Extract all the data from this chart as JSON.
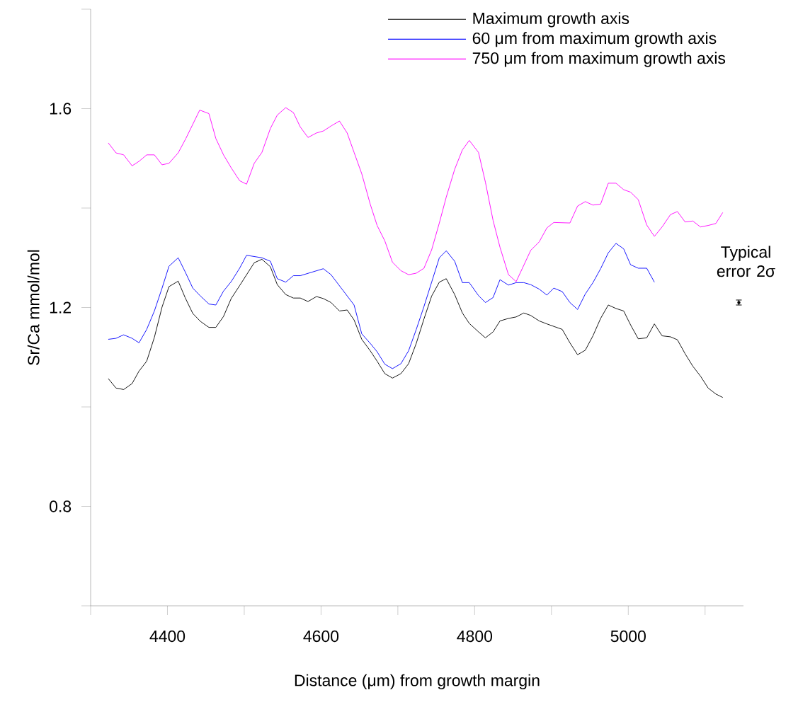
{
  "chart_data": {
    "type": "line",
    "xlabel": "Distance (μm) from growth margin",
    "ylabel": "Sr/Ca mmol/mol",
    "xlim": [
      4300,
      5150
    ],
    "ylim": [
      0.6,
      1.8
    ],
    "xticks": [
      {
        "value": 4300,
        "label": null
      },
      4400,
      {
        "value": 4500,
        "label": null
      },
      4600,
      {
        "value": 4700,
        "label": null
      },
      4800,
      {
        "value": 4900,
        "label": null
      },
      5000,
      {
        "value": 5100,
        "label": null
      }
    ],
    "yticks": [
      {
        "value": 0.6,
        "label": null
      },
      0.8,
      {
        "value": 1.0,
        "label": null
      },
      1.2,
      {
        "value": 1.4,
        "label": null
      },
      1.6,
      {
        "value": 1.8,
        "label": null
      }
    ],
    "legend": "top right",
    "annotations": [
      "Typical error 2σ"
    ],
    "series": [
      {
        "name": "Maximum growth axis",
        "color": "#000000",
        "x": [
          4323,
          4333,
          4343,
          4354,
          4363,
          4373,
          4383,
          4393,
          4402,
          4414,
          4423,
          4433,
          4443,
          4454,
          4463,
          4473,
          4483,
          4494,
          4513,
          4523,
          4534,
          4543,
          4554,
          4564,
          4573,
          4583,
          4594,
          4603,
          4613,
          4624,
          4634,
          4643,
          4653,
          4664,
          4673,
          4683,
          4693,
          4704,
          4714,
          4724,
          4734,
          4744,
          4754,
          4763,
          4774,
          4784,
          4793,
          4805,
          4814,
          4824,
          4833,
          4844,
          4854,
          4864,
          4873,
          4884,
          4894,
          4903,
          4914,
          4924,
          4934,
          4944,
          4954,
          4964,
          4974,
          4984,
          4994,
          5003,
          5013,
          5024,
          5034,
          5044,
          5055,
          5064,
          5074,
          5084,
          5094,
          5104,
          5114,
          5123
        ],
        "values": [
          1.057,
          1.038,
          1.035,
          1.047,
          1.072,
          1.092,
          1.14,
          1.201,
          1.242,
          1.253,
          1.22,
          1.188,
          1.172,
          1.16,
          1.16,
          1.182,
          1.218,
          1.244,
          1.29,
          1.297,
          1.282,
          1.246,
          1.226,
          1.219,
          1.219,
          1.212,
          1.222,
          1.218,
          1.21,
          1.193,
          1.195,
          1.175,
          1.136,
          1.113,
          1.092,
          1.067,
          1.058,
          1.067,
          1.087,
          1.128,
          1.177,
          1.223,
          1.251,
          1.258,
          1.226,
          1.189,
          1.168,
          1.151,
          1.139,
          1.151,
          1.173,
          1.178,
          1.181,
          1.189,
          1.184,
          1.173,
          1.167,
          1.162,
          1.156,
          1.129,
          1.105,
          1.114,
          1.143,
          1.178,
          1.205,
          1.198,
          1.193,
          1.165,
          1.137,
          1.139,
          1.167,
          1.143,
          1.141,
          1.135,
          1.107,
          1.082,
          1.062,
          1.038,
          1.026,
          1.019
        ]
      },
      {
        "name": "60 μm from maximum growth axis",
        "color": "#0000ff",
        "x": [
          4323,
          4333,
          4343,
          4354,
          4363,
          4373,
          4383,
          4393,
          4402,
          4414,
          4423,
          4433,
          4443,
          4454,
          4463,
          4473,
          4483,
          4494,
          4503,
          4523,
          4534,
          4543,
          4554,
          4564,
          4573,
          4603,
          4613,
          4643,
          4653,
          4664,
          4673,
          4683,
          4693,
          4704,
          4714,
          4724,
          4734,
          4744,
          4754,
          4763,
          4774,
          4784,
          4793,
          4805,
          4814,
          4824,
          4833,
          4844,
          4854,
          4864,
          4873,
          4884,
          4894,
          4903,
          4914,
          4924,
          4934,
          4944,
          4954,
          4964,
          4974,
          4984,
          4994,
          5003,
          5013,
          5024,
          5034
        ],
        "values": [
          1.136,
          1.138,
          1.145,
          1.138,
          1.129,
          1.156,
          1.193,
          1.239,
          1.283,
          1.3,
          1.272,
          1.239,
          1.223,
          1.207,
          1.205,
          1.233,
          1.252,
          1.279,
          1.305,
          1.3,
          1.293,
          1.258,
          1.251,
          1.264,
          1.264,
          1.278,
          1.266,
          1.205,
          1.147,
          1.128,
          1.111,
          1.086,
          1.077,
          1.087,
          1.113,
          1.156,
          1.202,
          1.251,
          1.3,
          1.314,
          1.293,
          1.25,
          1.25,
          1.224,
          1.21,
          1.22,
          1.256,
          1.245,
          1.25,
          1.25,
          1.246,
          1.237,
          1.225,
          1.239,
          1.232,
          1.21,
          1.196,
          1.227,
          1.25,
          1.278,
          1.31,
          1.329,
          1.318,
          1.286,
          1.279,
          1.279,
          1.251
        ]
      },
      {
        "name": "750 μm from maximum growth axis",
        "color": "#ff00ff",
        "x": [
          4323,
          4333,
          4343,
          4354,
          4363,
          4373,
          4383,
          4393,
          4402,
          4414,
          4424,
          4442,
          4454,
          4463,
          4473,
          4483,
          4494,
          4503,
          4513,
          4523,
          4534,
          4543,
          4554,
          4564,
          4573,
          4583,
          4594,
          4603,
          4614,
          4624,
          4634,
          4643,
          4653,
          4664,
          4673,
          4683,
          4693,
          4704,
          4714,
          4724,
          4734,
          4744,
          4754,
          4763,
          4774,
          4784,
          4793,
          4805,
          4814,
          4824,
          4833,
          4844,
          4854,
          4864,
          4873,
          4884,
          4894,
          4903,
          4924,
          4934,
          4944,
          4954,
          4964,
          4974,
          4984,
          4994,
          5003,
          5013,
          5024,
          5034,
          5044,
          5055,
          5064,
          5074,
          5084,
          5094,
          5104,
          5114,
          5123
        ],
        "values": [
          1.531,
          1.511,
          1.507,
          1.485,
          1.494,
          1.507,
          1.507,
          1.487,
          1.49,
          1.511,
          1.54,
          1.597,
          1.59,
          1.54,
          1.507,
          1.481,
          1.455,
          1.448,
          1.49,
          1.512,
          1.56,
          1.587,
          1.602,
          1.592,
          1.563,
          1.542,
          1.551,
          1.555,
          1.566,
          1.575,
          1.551,
          1.512,
          1.469,
          1.408,
          1.365,
          1.334,
          1.291,
          1.274,
          1.266,
          1.269,
          1.279,
          1.316,
          1.37,
          1.422,
          1.478,
          1.517,
          1.536,
          1.512,
          1.452,
          1.375,
          1.321,
          1.266,
          1.252,
          1.285,
          1.315,
          1.332,
          1.36,
          1.371,
          1.37,
          1.404,
          1.413,
          1.406,
          1.408,
          1.45,
          1.45,
          1.437,
          1.432,
          1.417,
          1.366,
          1.343,
          1.362,
          1.387,
          1.393,
          1.372,
          1.374,
          1.362,
          1.365,
          1.369,
          1.391
        ]
      },
      {
        "type": "scatter",
        "color": "#000000",
        "x": [
          5144
        ],
        "values": [
          1.21
        ],
        "errors": [
          0.005
        ]
      }
    ]
  }
}
